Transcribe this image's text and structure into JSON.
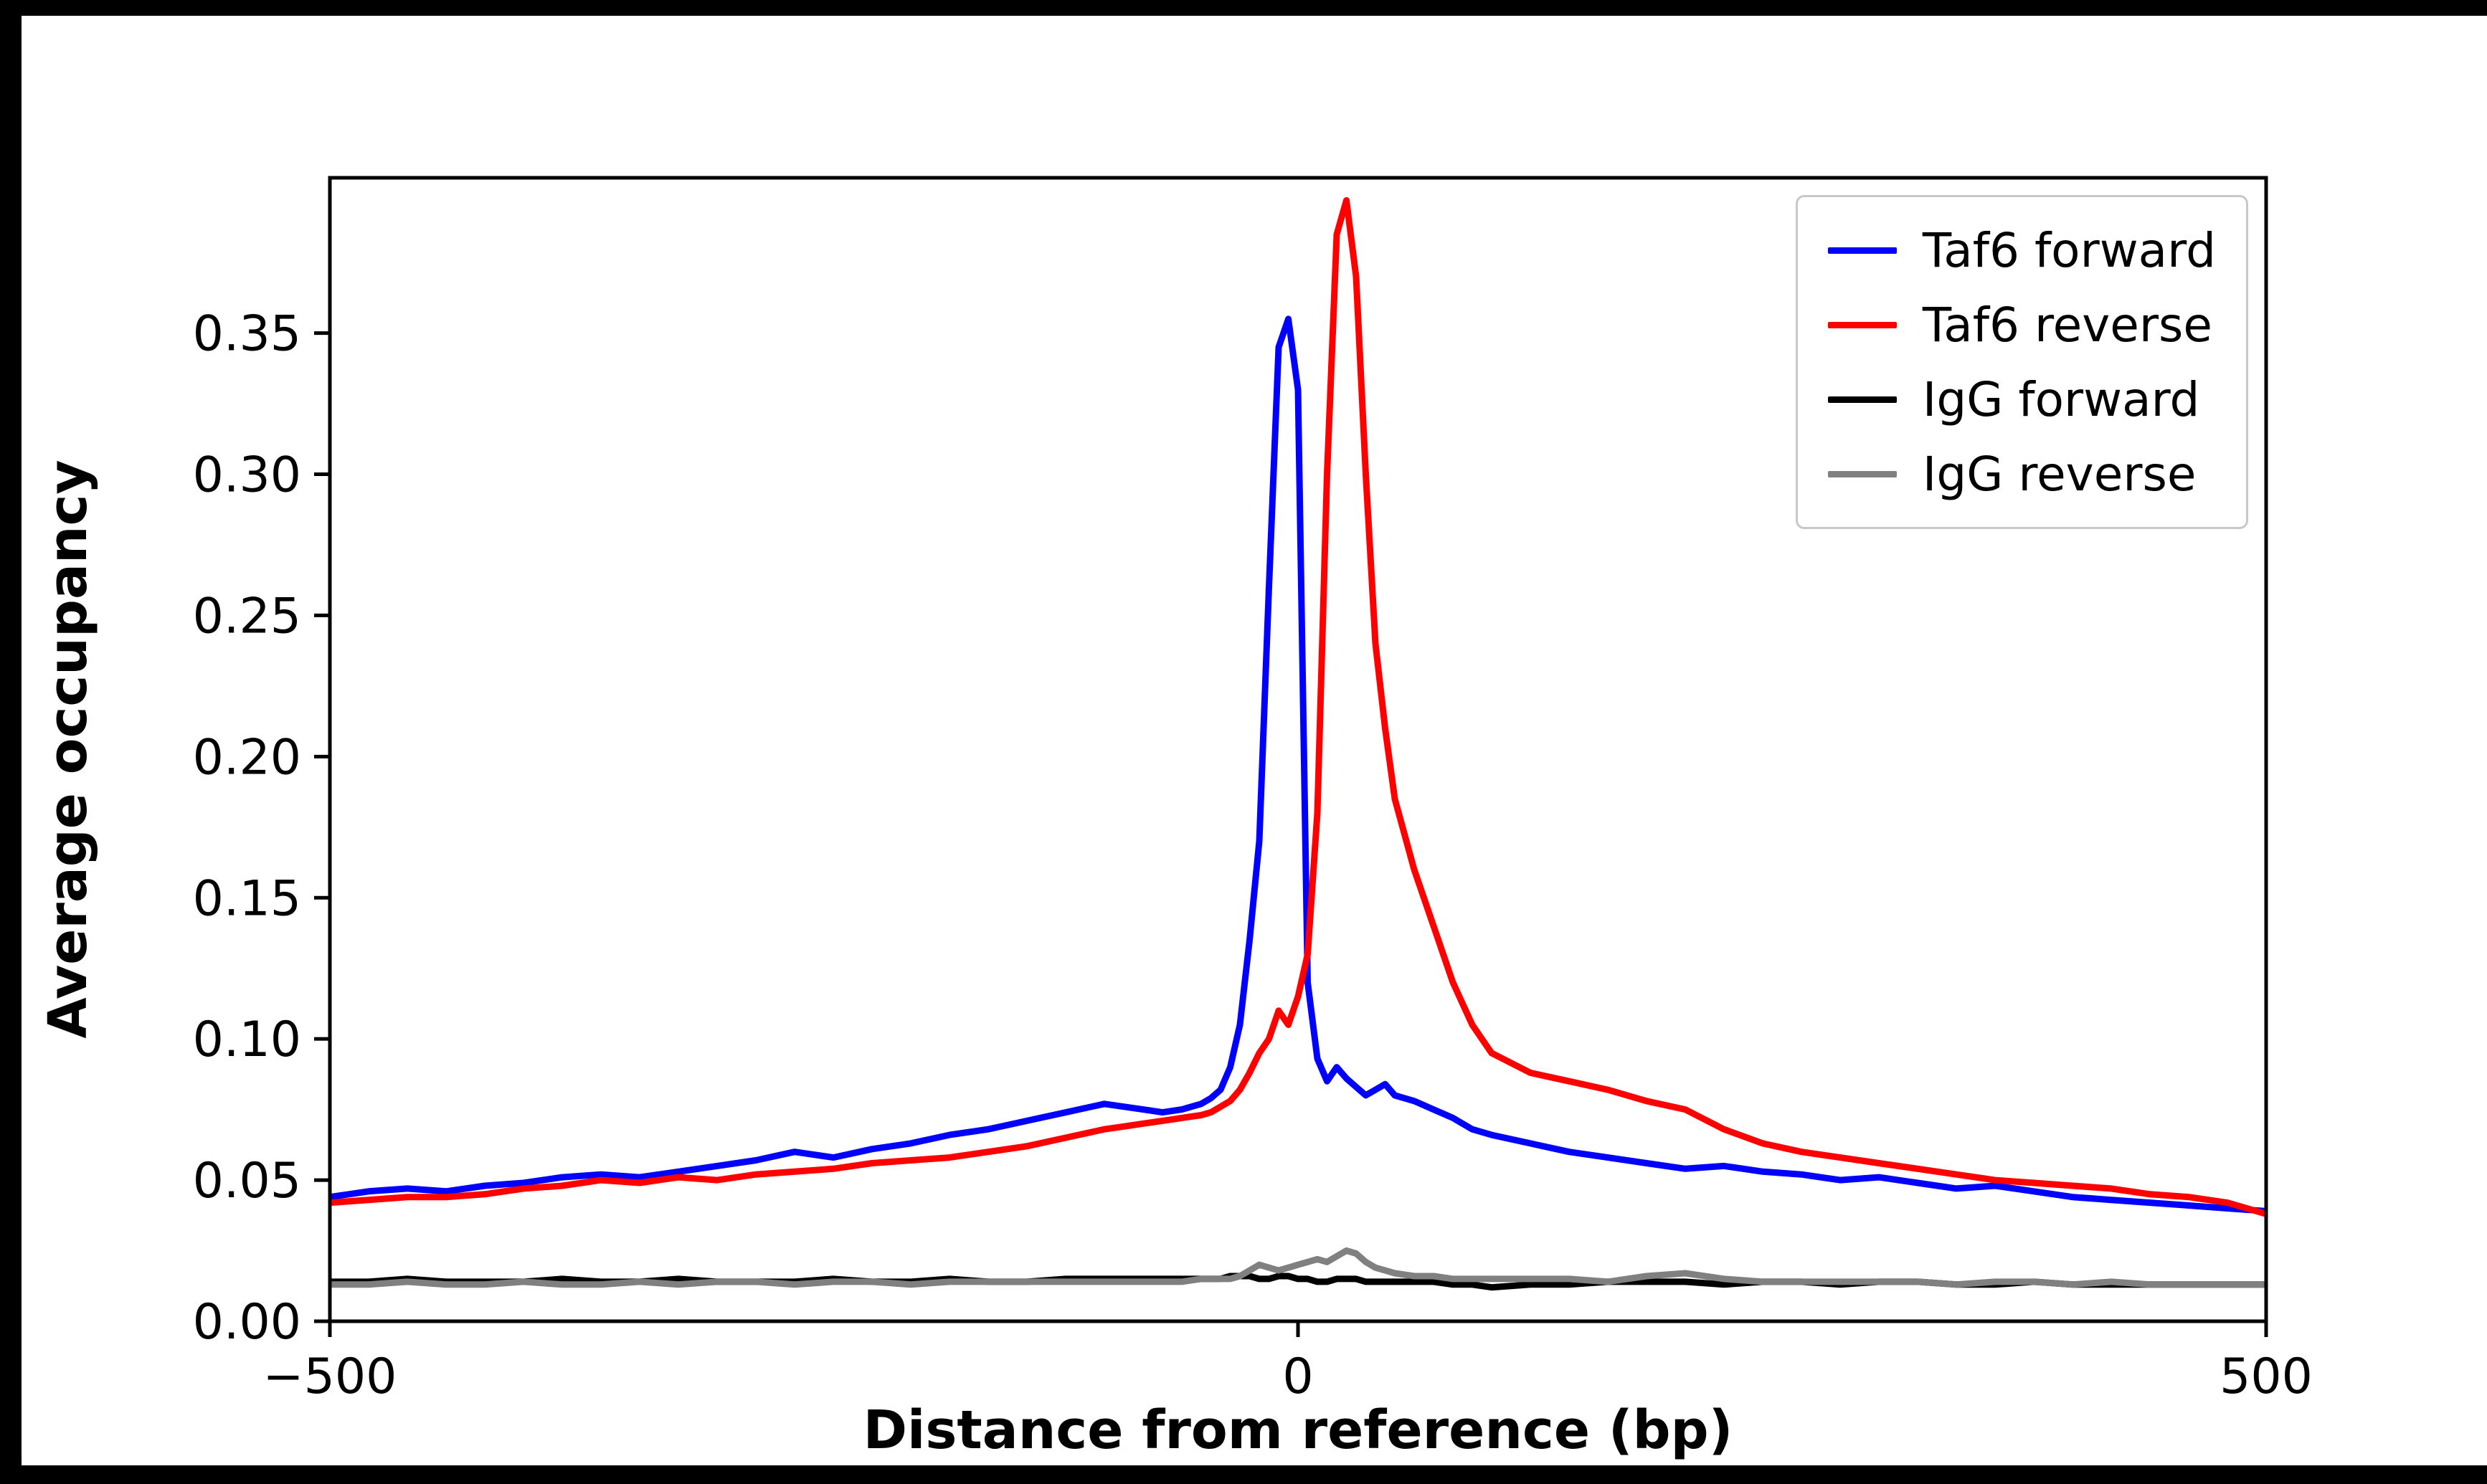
{
  "figure": {
    "background": "#ffffff",
    "frame_color": "#000000"
  },
  "chart_data": {
    "type": "line",
    "title": "",
    "xlabel": "Distance from reference (bp)",
    "ylabel": "Average occupancy",
    "xlim": [
      -500,
      500
    ],
    "ylim": [
      0,
      0.405
    ],
    "grid": false,
    "legend_position": "upper right",
    "x_ticks": [
      -500,
      0,
      500
    ],
    "x_tick_labels": [
      "−500",
      "0",
      "500"
    ],
    "y_ticks": [
      0.0,
      0.05,
      0.1,
      0.15,
      0.2,
      0.25,
      0.3,
      0.35
    ],
    "y_tick_labels": [
      "0.00",
      "0.05",
      "0.10",
      "0.15",
      "0.20",
      "0.25",
      "0.30",
      "0.35"
    ],
    "x": [
      -500,
      -480,
      -460,
      -440,
      -420,
      -400,
      -380,
      -360,
      -340,
      -320,
      -300,
      -280,
      -260,
      -240,
      -220,
      -200,
      -180,
      -160,
      -140,
      -120,
      -100,
      -90,
      -80,
      -70,
      -60,
      -50,
      -45,
      -40,
      -35,
      -30,
      -25,
      -20,
      -15,
      -10,
      -5,
      0,
      5,
      10,
      15,
      20,
      25,
      30,
      35,
      40,
      45,
      50,
      60,
      70,
      80,
      90,
      100,
      120,
      140,
      160,
      180,
      200,
      220,
      240,
      260,
      280,
      300,
      320,
      340,
      360,
      380,
      400,
      420,
      440,
      460,
      480,
      500
    ],
    "series": [
      {
        "name": "Taf6 forward",
        "color": "#0000ff",
        "values": [
          0.044,
          0.046,
          0.047,
          0.046,
          0.048,
          0.049,
          0.051,
          0.052,
          0.051,
          0.053,
          0.055,
          0.057,
          0.06,
          0.058,
          0.061,
          0.063,
          0.066,
          0.068,
          0.071,
          0.074,
          0.077,
          0.076,
          0.075,
          0.074,
          0.075,
          0.077,
          0.079,
          0.082,
          0.09,
          0.105,
          0.135,
          0.17,
          0.26,
          0.345,
          0.355,
          0.33,
          0.12,
          0.093,
          0.085,
          0.09,
          0.086,
          0.083,
          0.08,
          0.082,
          0.084,
          0.08,
          0.078,
          0.075,
          0.072,
          0.068,
          0.066,
          0.063,
          0.06,
          0.058,
          0.056,
          0.054,
          0.055,
          0.053,
          0.052,
          0.05,
          0.051,
          0.049,
          0.047,
          0.048,
          0.046,
          0.044,
          0.043,
          0.042,
          0.041,
          0.04,
          0.039
        ]
      },
      {
        "name": "Taf6 reverse",
        "color": "#ff0000",
        "values": [
          0.042,
          0.043,
          0.044,
          0.044,
          0.045,
          0.047,
          0.048,
          0.05,
          0.049,
          0.051,
          0.05,
          0.052,
          0.053,
          0.054,
          0.056,
          0.057,
          0.058,
          0.06,
          0.062,
          0.065,
          0.068,
          0.069,
          0.07,
          0.071,
          0.072,
          0.073,
          0.074,
          0.076,
          0.078,
          0.082,
          0.088,
          0.095,
          0.1,
          0.11,
          0.105,
          0.115,
          0.13,
          0.18,
          0.3,
          0.385,
          0.397,
          0.37,
          0.3,
          0.24,
          0.21,
          0.185,
          0.16,
          0.14,
          0.12,
          0.105,
          0.095,
          0.088,
          0.085,
          0.082,
          0.078,
          0.075,
          0.068,
          0.063,
          0.06,
          0.058,
          0.056,
          0.054,
          0.052,
          0.05,
          0.049,
          0.048,
          0.047,
          0.045,
          0.044,
          0.042,
          0.038
        ]
      },
      {
        "name": "IgG forward",
        "color": "#000000",
        "values": [
          0.014,
          0.014,
          0.015,
          0.014,
          0.014,
          0.014,
          0.015,
          0.014,
          0.014,
          0.015,
          0.014,
          0.014,
          0.014,
          0.015,
          0.014,
          0.014,
          0.015,
          0.014,
          0.014,
          0.015,
          0.015,
          0.015,
          0.015,
          0.015,
          0.015,
          0.015,
          0.015,
          0.015,
          0.016,
          0.016,
          0.016,
          0.015,
          0.015,
          0.016,
          0.016,
          0.015,
          0.015,
          0.014,
          0.014,
          0.015,
          0.015,
          0.015,
          0.014,
          0.014,
          0.014,
          0.014,
          0.014,
          0.014,
          0.013,
          0.013,
          0.012,
          0.013,
          0.013,
          0.014,
          0.014,
          0.014,
          0.013,
          0.014,
          0.014,
          0.013,
          0.014,
          0.014,
          0.013,
          0.013,
          0.014,
          0.013,
          0.013,
          0.013,
          0.013,
          0.013,
          0.013
        ]
      },
      {
        "name": "IgG reverse",
        "color": "#808080",
        "values": [
          0.013,
          0.013,
          0.014,
          0.013,
          0.013,
          0.014,
          0.013,
          0.013,
          0.014,
          0.013,
          0.014,
          0.014,
          0.013,
          0.014,
          0.014,
          0.013,
          0.014,
          0.014,
          0.014,
          0.014,
          0.014,
          0.014,
          0.014,
          0.014,
          0.014,
          0.015,
          0.015,
          0.015,
          0.015,
          0.016,
          0.018,
          0.02,
          0.019,
          0.018,
          0.019,
          0.02,
          0.021,
          0.022,
          0.021,
          0.023,
          0.025,
          0.024,
          0.021,
          0.019,
          0.018,
          0.017,
          0.016,
          0.016,
          0.015,
          0.015,
          0.015,
          0.015,
          0.015,
          0.014,
          0.016,
          0.017,
          0.015,
          0.014,
          0.014,
          0.014,
          0.014,
          0.014,
          0.013,
          0.014,
          0.014,
          0.013,
          0.014,
          0.013,
          0.013,
          0.013,
          0.013
        ]
      }
    ]
  }
}
